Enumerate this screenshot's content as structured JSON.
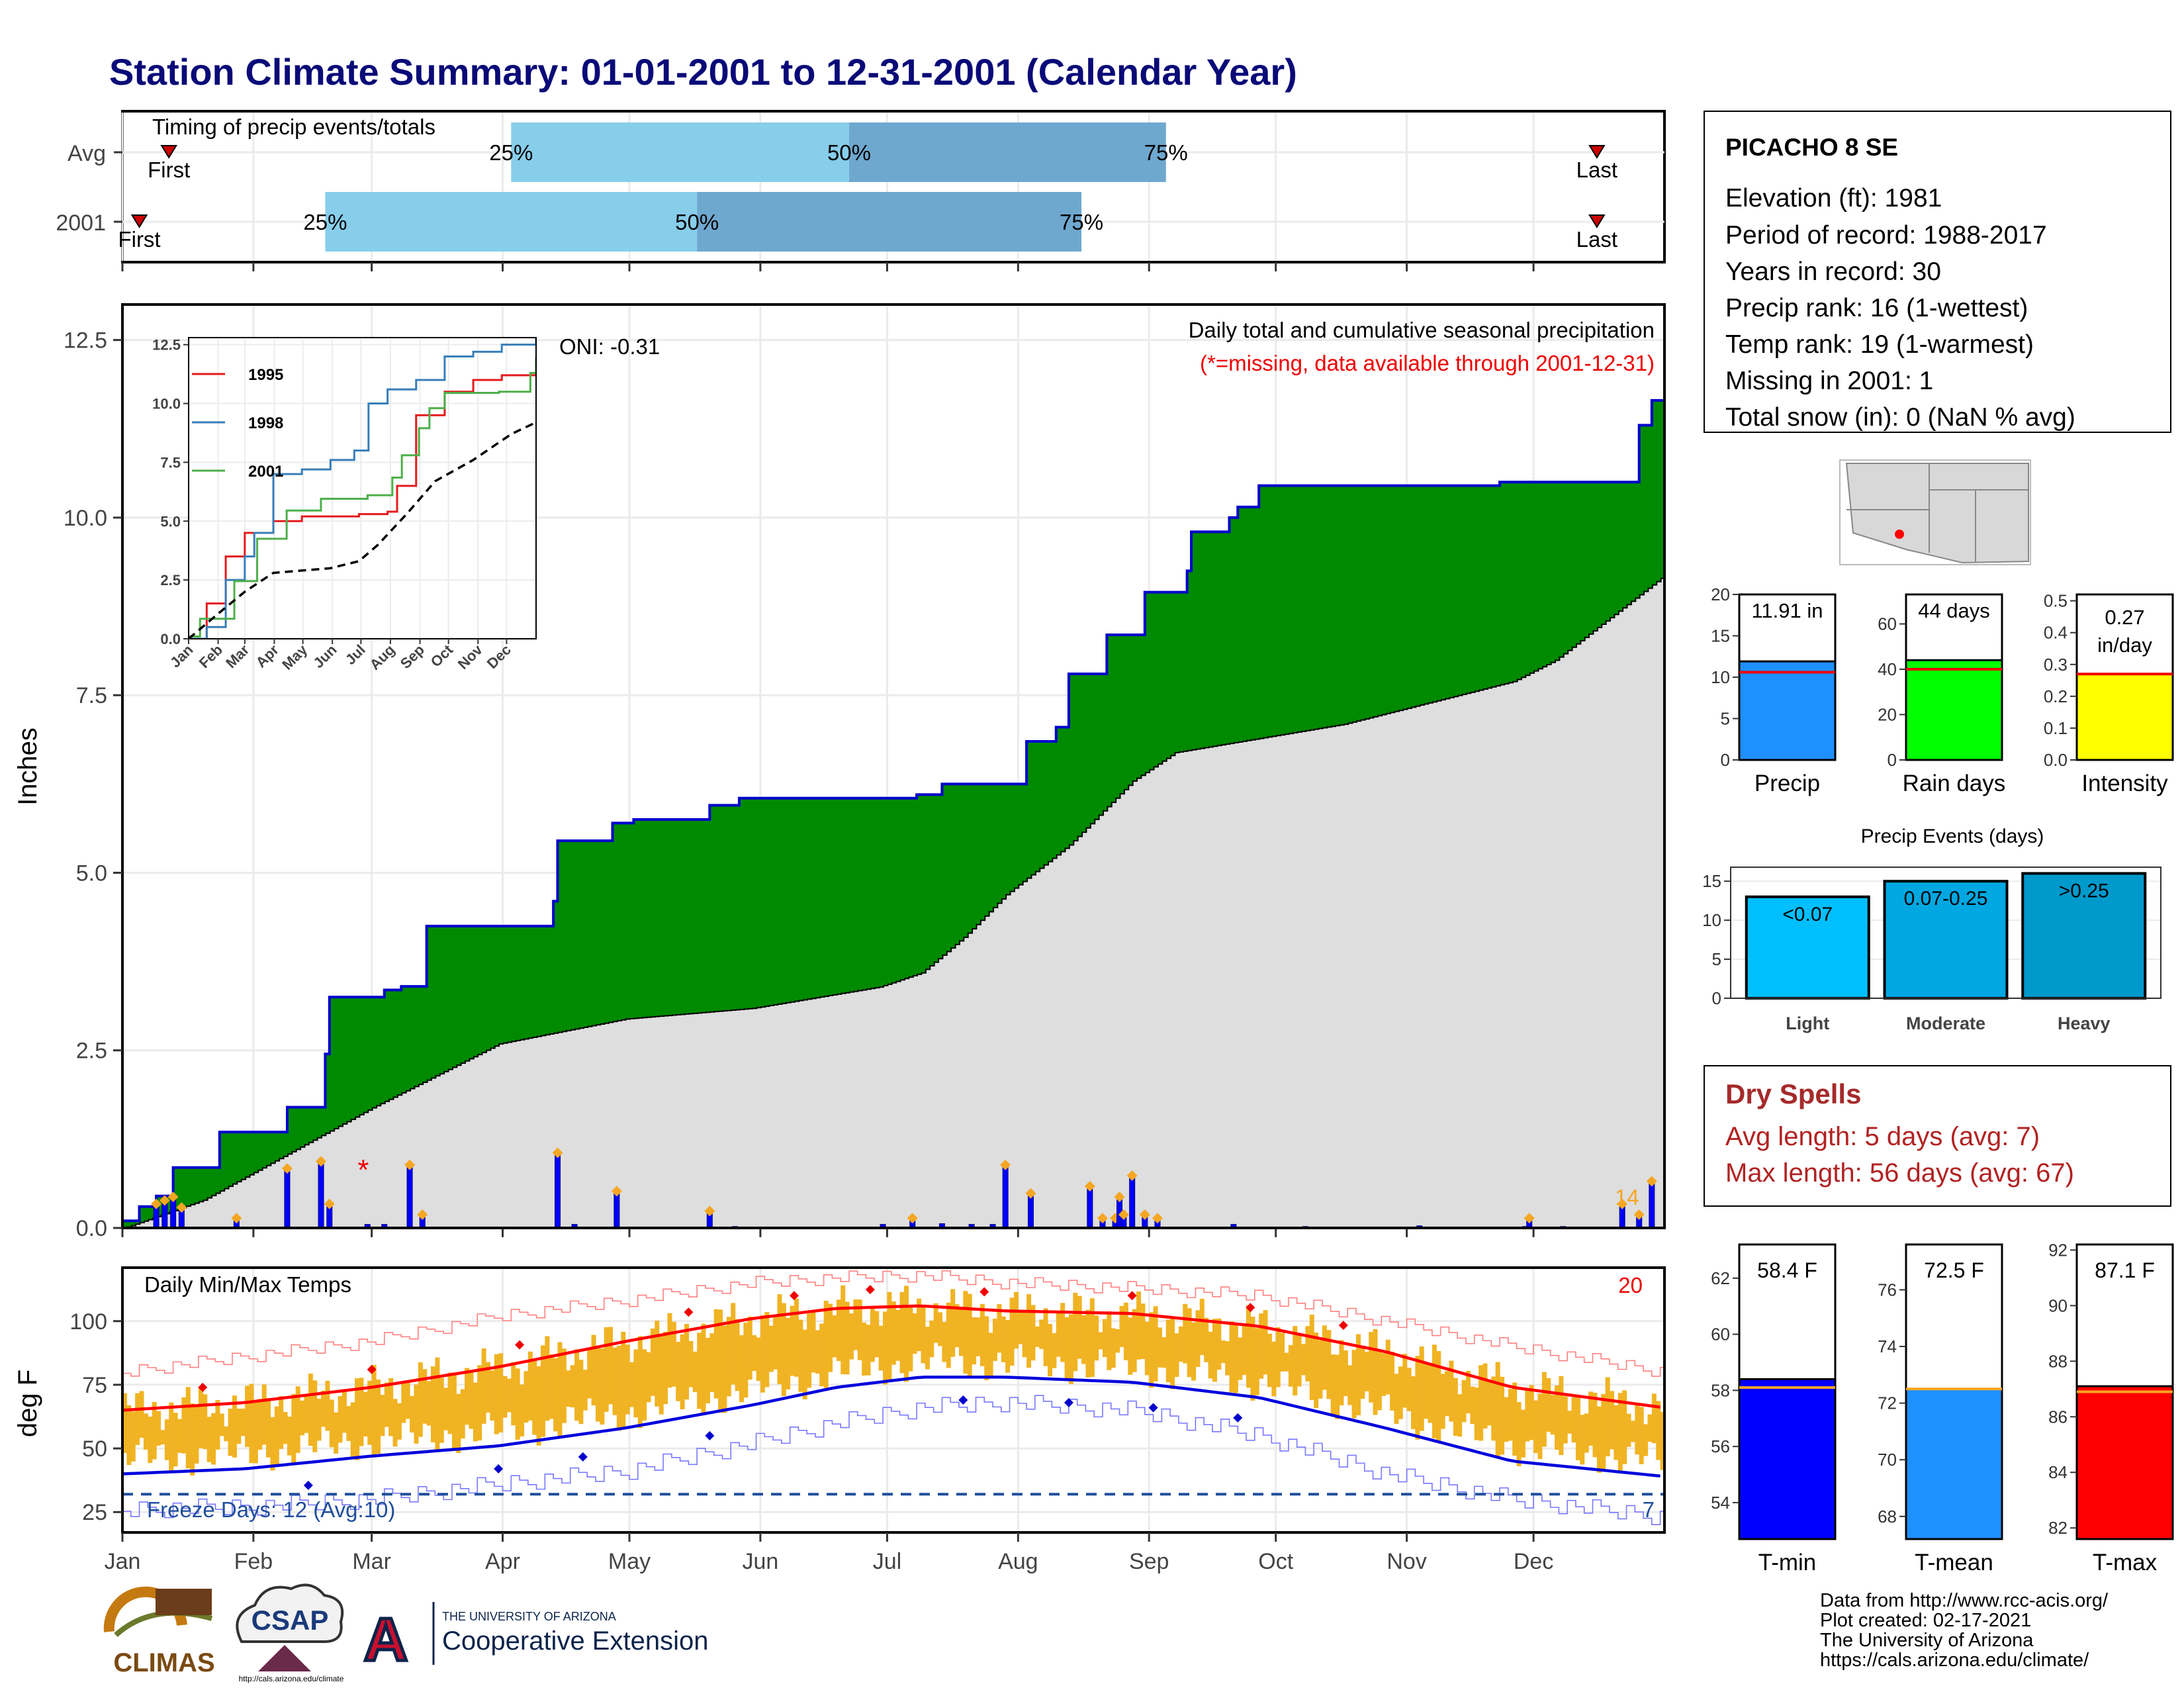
{
  "title": "Station Climate Summary: 01-01-2001 to 12-31-2001 (Calendar Year)",
  "timing": {
    "label": "Timing of precip events/totals",
    "rows": [
      {
        "name": "Avg",
        "first_doy": 12,
        "p25": 93,
        "p50": 173,
        "p75": 248,
        "last_doy": 350,
        "first_label": "First",
        "last_label": "Last",
        "p25_label": "25%",
        "p50_label": "50%",
        "p75_label": "75%"
      },
      {
        "name": "2001",
        "first_doy": 5,
        "p25": 49,
        "p50": 137,
        "p75": 228,
        "last_doy": 350,
        "first_label": "First",
        "last_label": "Last",
        "p25_label": "25%",
        "p50_label": "50%",
        "p75_label": "75%"
      }
    ]
  },
  "precip_panel": {
    "ylabel": "Inches",
    "yticks": [
      "0.0",
      "2.5",
      "5.0",
      "7.5",
      "10.0",
      "12.5"
    ],
    "ylim": [
      0,
      13.0
    ],
    "title": "Daily total and cumulative seasonal precipitation",
    "subtitle": "(*=missing, data available through 2001-12-31)",
    "oni": "ONI: -0.31",
    "count_label": "14",
    "missing_marker": "*",
    "missing_doy": 58
  },
  "inset": {
    "yticks": [
      "0.0",
      "2.5",
      "5.0",
      "7.5",
      "10.0",
      "12.5"
    ],
    "xticks": [
      "Jan",
      "Feb",
      "Mar",
      "Apr",
      "May",
      "Jun",
      "Jul",
      "Aug",
      "Sep",
      "Oct",
      "Nov",
      "Dec"
    ],
    "legend": [
      "1995",
      "1998",
      "2001"
    ],
    "colors": [
      "#e41a1c",
      "#377eb8",
      "#4daf4a"
    ]
  },
  "temp_panel": {
    "ylabel": "deg F",
    "title": "Daily Min/Max Temps",
    "yticks": [
      "25",
      "50",
      "75",
      "100"
    ],
    "ylim": [
      17,
      121
    ],
    "freeze_label": "Freeze Days: 12 (Avg:10)",
    "max_count": "20",
    "min_count": "7"
  },
  "x_months": [
    "Jan",
    "Feb",
    "Mar",
    "Apr",
    "May",
    "Jun",
    "Jul",
    "Aug",
    "Sep",
    "Oct",
    "Nov",
    "Dec"
  ],
  "station": {
    "name": "PICACHO 8 SE",
    "lines": [
      "Elevation (ft): 1981",
      "Period of record: 1988-2017",
      "Years in record: 30",
      "Precip rank: 16 (1-wettest)",
      "Temp rank: 19 (1-warmest)",
      "Missing in 2001: 1",
      "Total snow (in): 0 (NaN % avg)"
    ]
  },
  "minibars": [
    {
      "label": "Precip",
      "value_label": "11.91 in",
      "value": 11.91,
      "avg": 10.6,
      "ymax": 20,
      "yticks": [
        "0",
        "5",
        "10",
        "15",
        "20"
      ],
      "color": "#1e90ff"
    },
    {
      "label": "Rain days",
      "value_label": "44 days",
      "value": 44,
      "avg": 40,
      "ymax": 73,
      "yticks": [
        "0",
        "20",
        "40",
        "60"
      ],
      "color": "#00ff00"
    },
    {
      "label": "Intensity",
      "value_label": "0.27 in/day",
      "value": 0.27,
      "avg": 0.27,
      "ymax": 0.52,
      "yticks": [
        "0.0",
        "0.1",
        "0.2",
        "0.3",
        "0.4",
        "0.5"
      ],
      "color": "#ffff00"
    }
  ],
  "events": {
    "title": "Precip Events (days)",
    "yticks": [
      "0",
      "5",
      "10",
      "15"
    ],
    "categories": [
      "Light",
      "Moderate",
      "Heavy"
    ],
    "labels": [
      "<0.07",
      "0.07-0.25",
      ">0.25"
    ],
    "values": [
      13,
      15,
      16
    ],
    "colors": [
      "#00bfff",
      "#00a7e1",
      "#0099cc"
    ]
  },
  "dry_spells": {
    "title": "Dry Spells",
    "avg_line": "Avg length: 5 days (avg: 7)",
    "max_line": "Max length: 56 days (avg: 67)"
  },
  "temp_bars": [
    {
      "label": "T-min",
      "value_label": "58.4 F",
      "value": 58.4,
      "avg": 58.1,
      "ymin": 52.7,
      "ymax": 63.2,
      "yticks": [
        "54",
        "56",
        "58",
        "60",
        "62"
      ],
      "color": "#0000ff"
    },
    {
      "label": "T-mean",
      "value_label": "72.5 F",
      "value": 72.5,
      "avg": 72.5,
      "ymin": 67.2,
      "ymax": 77.6,
      "yticks": [
        "68",
        "70",
        "72",
        "74",
        "76"
      ],
      "color": "#1e90ff"
    },
    {
      "label": "T-max",
      "value_label": "87.1 F",
      "value": 87.1,
      "avg": 86.9,
      "ymin": 81.6,
      "ymax": 92.2,
      "yticks": [
        "82",
        "84",
        "86",
        "88",
        "90",
        "92"
      ],
      "color": "#ff0000"
    }
  ],
  "footer": {
    "lines": [
      "Data from http://www.rcc-acis.org/",
      "Plot created: 02-17-2021",
      "The University of Arizona",
      "https://cals.arizona.edu/climate/"
    ],
    "climas": "CLIMAS",
    "csap": "CSAP",
    "csap_url": "http://cals.arizona.edu/climate",
    "ua_small": "THE UNIVERSITY OF ARIZONA",
    "ua_big": "Cooperative Extension",
    "ua_letter": "A"
  },
  "chart_data": {
    "type": "area",
    "title": "Daily total and cumulative seasonal precipitation",
    "ylabel": "Inches",
    "ylim": [
      0,
      13
    ],
    "cumulative_2001_steps": [
      [
        1,
        0.1
      ],
      [
        5,
        0.3
      ],
      [
        9,
        0.45
      ],
      [
        13,
        0.85
      ],
      [
        24,
        1.35
      ],
      [
        40,
        1.7
      ],
      [
        49,
        2.45
      ],
      [
        50,
        3.25
      ],
      [
        63,
        3.35
      ],
      [
        67,
        3.4
      ],
      [
        73,
        4.25
      ],
      [
        103,
        4.6
      ],
      [
        104,
        5.45
      ],
      [
        117,
        5.7
      ],
      [
        122,
        5.75
      ],
      [
        140,
        5.95
      ],
      [
        147,
        6.05
      ],
      [
        189,
        6.1
      ],
      [
        195,
        6.25
      ],
      [
        215,
        6.85
      ],
      [
        222,
        7.05
      ],
      [
        225,
        7.8
      ],
      [
        234,
        8.35
      ],
      [
        243,
        8.95
      ],
      [
        253,
        9.25
      ],
      [
        254,
        9.8
      ],
      [
        263,
        10.0
      ],
      [
        265,
        10.15
      ],
      [
        270,
        10.45
      ],
      [
        327,
        10.5
      ],
      [
        360,
        11.3
      ],
      [
        363,
        11.65
      ],
      [
        366,
        11.91
      ]
    ],
    "avg_cumulative": [
      [
        1,
        0.0
      ],
      [
        20,
        0.4
      ],
      [
        60,
        1.7
      ],
      [
        90,
        2.6
      ],
      [
        120,
        2.95
      ],
      [
        150,
        3.1
      ],
      [
        170,
        3.3
      ],
      [
        180,
        3.4
      ],
      [
        190,
        3.6
      ],
      [
        200,
        4.1
      ],
      [
        210,
        4.7
      ],
      [
        225,
        5.4
      ],
      [
        240,
        6.3
      ],
      [
        250,
        6.7
      ],
      [
        270,
        6.9
      ],
      [
        290,
        7.1
      ],
      [
        310,
        7.4
      ],
      [
        330,
        7.7
      ],
      [
        340,
        8.0
      ],
      [
        366,
        9.2
      ]
    ],
    "daily_bars": [
      [
        9,
        0.3
      ],
      [
        11,
        0.35
      ],
      [
        13,
        0.4
      ],
      [
        15,
        0.25
      ],
      [
        28,
        0.1
      ],
      [
        40,
        0.8
      ],
      [
        48,
        0.9
      ],
      [
        50,
        0.3
      ],
      [
        59,
        0.05
      ],
      [
        63,
        0.05
      ],
      [
        69,
        0.85
      ],
      [
        72,
        0.15
      ],
      [
        104,
        1.02
      ],
      [
        108,
        0.05
      ],
      [
        118,
        0.48
      ],
      [
        140,
        0.2
      ],
      [
        146,
        0.02
      ],
      [
        181,
        0.05
      ],
      [
        188,
        0.1
      ],
      [
        195,
        0.06
      ],
      [
        202,
        0.05
      ],
      [
        207,
        0.05
      ],
      [
        210,
        0.85
      ],
      [
        216,
        0.45
      ],
      [
        230,
        0.55
      ],
      [
        233,
        0.1
      ],
      [
        236,
        0.1
      ],
      [
        237,
        0.4
      ],
      [
        238,
        0.15
      ],
      [
        240,
        0.7
      ],
      [
        243,
        0.15
      ],
      [
        246,
        0.1
      ],
      [
        264,
        0.05
      ],
      [
        281,
        0.02
      ],
      [
        308,
        0.03
      ],
      [
        333,
        0.02
      ],
      [
        334,
        0.1
      ],
      [
        342,
        0.02
      ],
      [
        356,
        0.3
      ],
      [
        360,
        0.15
      ],
      [
        363,
        0.62
      ]
    ],
    "insets": [
      {
        "name": "1995",
        "points": [
          [
            1,
            0.0
          ],
          [
            20,
            1.5
          ],
          [
            40,
            3.5
          ],
          [
            60,
            4.5
          ],
          [
            90,
            5.0
          ],
          [
            120,
            5.2
          ],
          [
            150,
            5.2
          ],
          [
            180,
            5.3
          ],
          [
            210,
            5.4
          ],
          [
            220,
            6.5
          ],
          [
            240,
            9.5
          ],
          [
            270,
            10.5
          ],
          [
            300,
            11.0
          ],
          [
            330,
            11.2
          ],
          [
            366,
            11.4
          ]
        ]
      },
      {
        "name": "1998",
        "points": [
          [
            1,
            0.0
          ],
          [
            20,
            0.5
          ],
          [
            40,
            2.5
          ],
          [
            60,
            3.5
          ],
          [
            70,
            4.5
          ],
          [
            90,
            7.0
          ],
          [
            120,
            7.2
          ],
          [
            150,
            7.6
          ],
          [
            175,
            8.0
          ],
          [
            190,
            10.0
          ],
          [
            210,
            10.6
          ],
          [
            240,
            11.0
          ],
          [
            270,
            12.0
          ],
          [
            300,
            12.2
          ],
          [
            330,
            12.5
          ],
          [
            366,
            12.8
          ]
        ]
      },
      {
        "name": "2001",
        "points": [
          [
            1,
            0.1
          ],
          [
            13,
            0.85
          ],
          [
            49,
            2.45
          ],
          [
            73,
            4.25
          ],
          [
            104,
            5.45
          ],
          [
            140,
            5.95
          ],
          [
            189,
            6.1
          ],
          [
            215,
            6.85
          ],
          [
            225,
            7.8
          ],
          [
            243,
            8.95
          ],
          [
            254,
            9.8
          ],
          [
            270,
            10.45
          ],
          [
            327,
            10.5
          ],
          [
            360,
            11.3
          ],
          [
            366,
            11.91
          ]
        ]
      },
      {
        "name": "avg",
        "points": [
          [
            1,
            0.0
          ],
          [
            30,
            1.0
          ],
          [
            60,
            2.0
          ],
          [
            90,
            2.8
          ],
          [
            120,
            2.9
          ],
          [
            150,
            3.0
          ],
          [
            180,
            3.3
          ],
          [
            200,
            4.0
          ],
          [
            230,
            5.3
          ],
          [
            260,
            6.7
          ],
          [
            300,
            7.6
          ],
          [
            340,
            8.7
          ],
          [
            366,
            9.2
          ]
        ]
      }
    ],
    "temps": {
      "avg_max": [
        [
          1,
          65
        ],
        [
          30,
          68
        ],
        [
          60,
          74
        ],
        [
          90,
          82
        ],
        [
          120,
          92
        ],
        [
          150,
          101
        ],
        [
          170,
          105
        ],
        [
          190,
          106
        ],
        [
          210,
          104
        ],
        [
          240,
          103
        ],
        [
          270,
          98
        ],
        [
          300,
          88
        ],
        [
          330,
          74
        ],
        [
          366,
          66
        ]
      ],
      "avg_min": [
        [
          1,
          40
        ],
        [
          30,
          42
        ],
        [
          60,
          47
        ],
        [
          90,
          51
        ],
        [
          120,
          58
        ],
        [
          150,
          67
        ],
        [
          170,
          74
        ],
        [
          190,
          78
        ],
        [
          210,
          78
        ],
        [
          240,
          76
        ],
        [
          270,
          70
        ],
        [
          300,
          58
        ],
        [
          330,
          45
        ],
        [
          366,
          39
        ]
      ],
      "rec_max": [
        [
          1,
          80
        ],
        [
          30,
          86
        ],
        [
          60,
          92
        ],
        [
          90,
          102
        ],
        [
          120,
          108
        ],
        [
          150,
          115
        ],
        [
          170,
          117
        ],
        [
          190,
          118
        ],
        [
          210,
          115
        ],
        [
          240,
          113
        ],
        [
          270,
          110
        ],
        [
          300,
          100
        ],
        [
          330,
          90
        ],
        [
          366,
          80
        ]
      ],
      "rec_min": [
        [
          1,
          26
        ],
        [
          30,
          27
        ],
        [
          60,
          30
        ],
        [
          90,
          36
        ],
        [
          120,
          41
        ],
        [
          150,
          52
        ],
        [
          170,
          60
        ],
        [
          190,
          66
        ],
        [
          210,
          68
        ],
        [
          240,
          65
        ],
        [
          270,
          55
        ],
        [
          300,
          40
        ],
        [
          330,
          30
        ],
        [
          366,
          23
        ]
      ],
      "freeze_line": 32
    }
  }
}
